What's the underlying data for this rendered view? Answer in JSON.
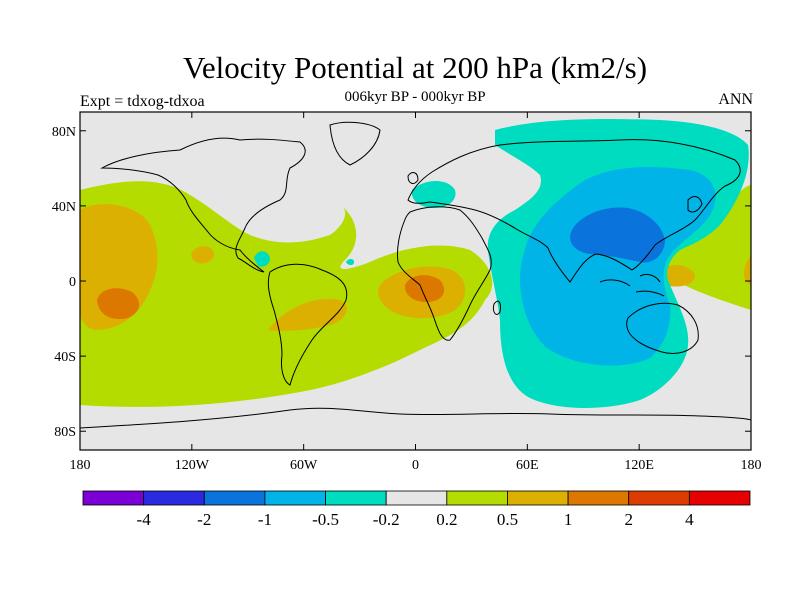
{
  "title": "Velocity Potential at 200 hPa (km2/s)",
  "subtitle": "006kyr BP - 000kyr BP",
  "left_label": "Expt = tdxog-tdxoa",
  "right_label": "ANN",
  "colors": {
    "background": "#e6e6e6",
    "land_outline": "#000000",
    "levels": [
      "#7a00d6",
      "#2a2ae0",
      "#0a74dc",
      "#00b4e8",
      "#00dcc0",
      "#e6e6e6",
      "#b4dc00",
      "#dcb000",
      "#dc7800",
      "#dc3c00",
      "#e60000"
    ]
  },
  "map": {
    "projection": "cylindrical equidistant",
    "lon_range": [
      -180,
      180
    ],
    "lat_range": [
      -90,
      90
    ],
    "x_ticks": [
      "180",
      "120W",
      "60W",
      "0",
      "60E",
      "120E",
      "180"
    ],
    "y_ticks": [
      "80N",
      "40N",
      "0",
      "40S",
      "80S"
    ],
    "y_tick_lats": [
      80,
      40,
      0,
      -40,
      -80
    ],
    "x_tick_lons": [
      -180,
      -120,
      -60,
      0,
      60,
      120,
      180
    ]
  },
  "colorbar": {
    "labels": [
      "-4",
      "-2",
      "-1",
      "-0.5",
      "-0.2",
      "0.2",
      "0.5",
      "1",
      "2",
      "4"
    ]
  }
}
